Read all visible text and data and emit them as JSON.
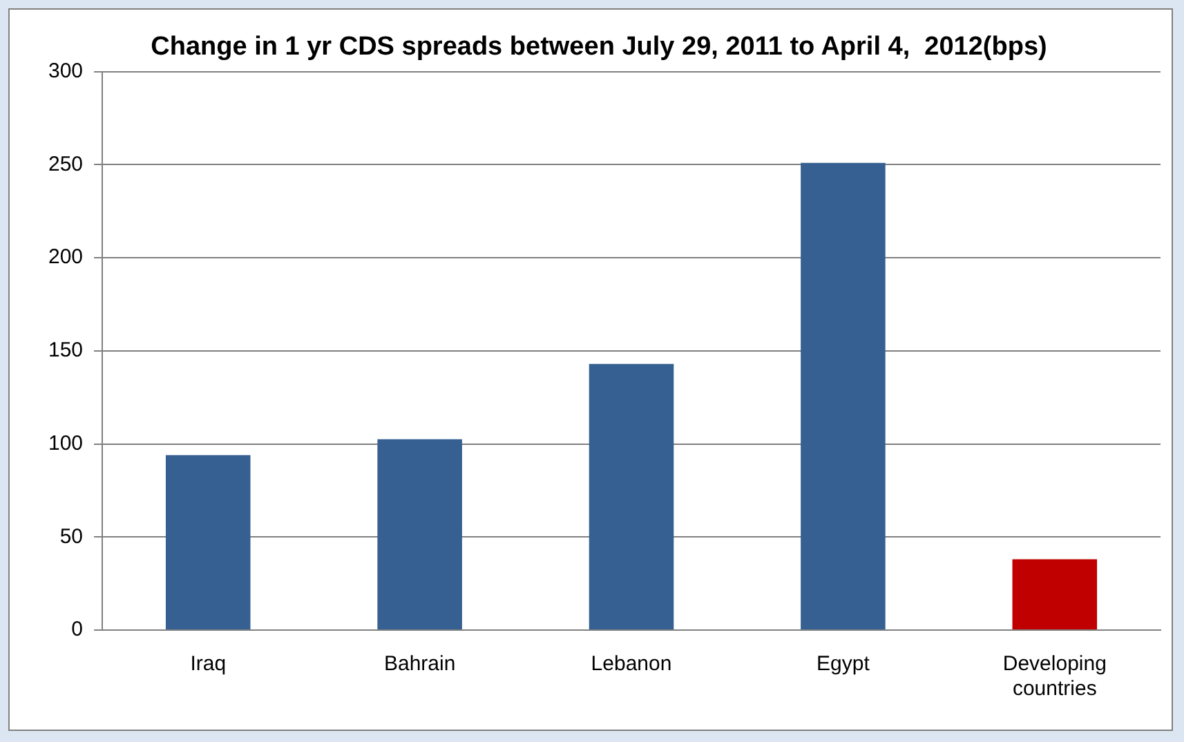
{
  "chart_data": {
    "type": "bar",
    "title": "Change in 1 yr CDS spreads between July 29, 2011 to April 4,  2012(bps)",
    "categories": [
      "Iraq",
      "Bahrain",
      "Lebanon",
      "Egypt",
      "Developing countries"
    ],
    "values": [
      94,
      102.5,
      143,
      251,
      38
    ],
    "colors": [
      "#366092",
      "#366092",
      "#366092",
      "#366092",
      "#c00000"
    ],
    "ylim": [
      0,
      300
    ],
    "yticks": [
      0,
      50,
      100,
      150,
      200,
      250,
      300
    ],
    "grid": "y",
    "legend": false
  }
}
